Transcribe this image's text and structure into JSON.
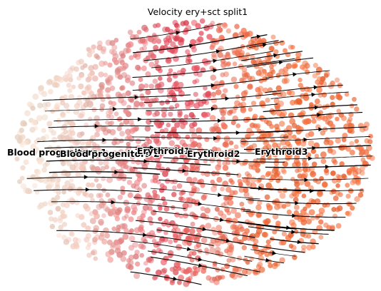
{
  "chart_data": {
    "type": "scatter",
    "title": "Velocity ery+sct split1",
    "xlabel": "",
    "ylabel": "",
    "axes": "off",
    "grid": false,
    "legend": "on data",
    "overlay": "velocity streamlines",
    "clusters": [
      {
        "name": "Blood progenitors 1",
        "color": "#f0d8c8",
        "center": [
          0.13,
          0.5
        ]
      },
      {
        "name": "Blood progenitors 2",
        "color": "#e8a8a0",
        "center": [
          0.32,
          0.52
        ]
      },
      {
        "name": "Erythroid1",
        "color": "#e04858",
        "center": [
          0.44,
          0.76
        ]
      },
      {
        "name": "Erythroid2",
        "color": "#e87060",
        "center": [
          0.57,
          0.5
        ]
      },
      {
        "name": "Erythroid3",
        "color": "#f06a38",
        "center": [
          0.8,
          0.62
        ]
      }
    ],
    "colors": {
      "progenitor1": "#f0d8c8",
      "progenitor2": "#e8a8a0",
      "erythroid1": "#e04858",
      "erythroid2": "#e87060",
      "erythroid3": "#f06a38",
      "stream": "#000000"
    }
  }
}
